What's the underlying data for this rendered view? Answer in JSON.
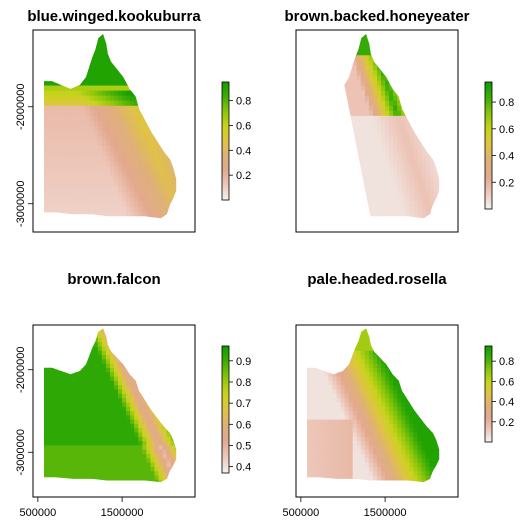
{
  "colors": {
    "ramp": [
      "#f2f2f2",
      "#eec9bd",
      "#e3a98f",
      "#dfb079",
      "#e0c344",
      "#c8d41c",
      "#8bc50b",
      "#3eae06",
      "#0d9b00"
    ],
    "frame": "#000000"
  },
  "chart_data": [
    {
      "type": "heatmap",
      "title": "blue.winged.kookuburra",
      "colorbar_ticks": [
        "0.8",
        "0.6",
        "0.4",
        "0.2"
      ],
      "colorbar_range": [
        0.0,
        0.95
      ],
      "y_ticks": [
        "-2000000",
        "-3000000"
      ],
      "x_ticks": [],
      "pattern": "north-high"
    },
    {
      "type": "heatmap",
      "title": "brown.backed.honeyeater",
      "colorbar_ticks": [
        "0.8",
        "0.6",
        "0.4",
        "0.2"
      ],
      "colorbar_range": [
        0.0,
        0.95
      ],
      "y_ticks": [],
      "x_ticks": [],
      "pattern": "northeast-strip"
    },
    {
      "type": "heatmap",
      "title": "brown.falcon",
      "colorbar_ticks": [
        "0.9",
        "0.8",
        "0.7",
        "0.6",
        "0.5",
        "0.4"
      ],
      "colorbar_range": [
        0.37,
        0.97
      ],
      "y_ticks": [
        "-2000000",
        "-3000000"
      ],
      "x_ticks": [
        "500000",
        "1500000"
      ],
      "pattern": "mostly-high"
    },
    {
      "type": "heatmap",
      "title": "pale.headed.rosella",
      "colorbar_ticks": [
        "0.8",
        "0.6",
        "0.4",
        "0.2"
      ],
      "colorbar_range": [
        0.0,
        0.95
      ],
      "y_ticks": [],
      "x_ticks": [
        "500000",
        "1500000"
      ],
      "pattern": "east-coast-high"
    }
  ]
}
